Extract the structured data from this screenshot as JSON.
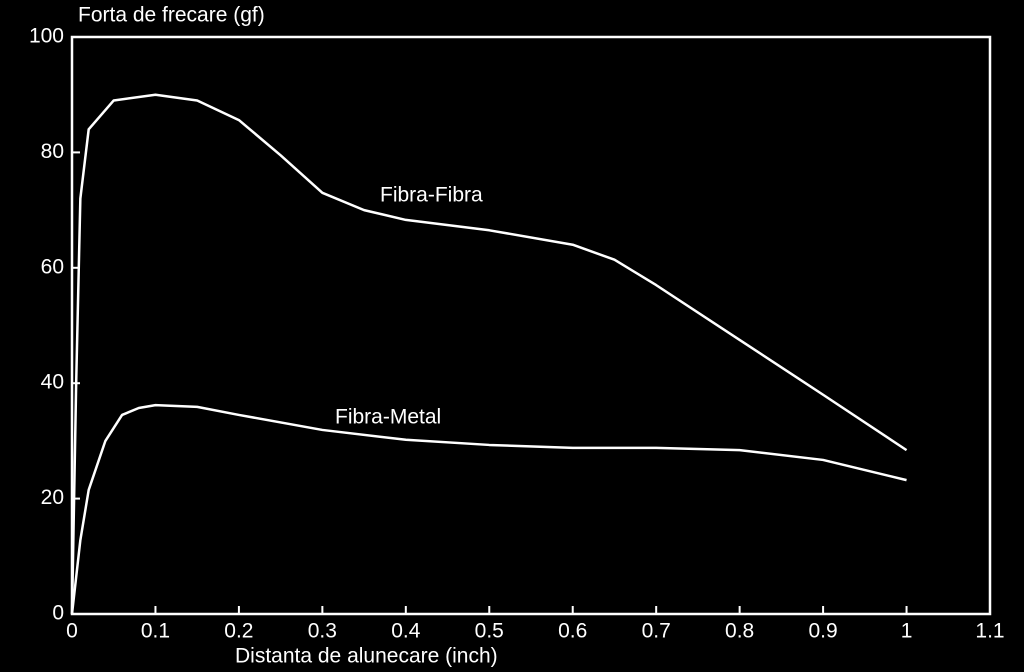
{
  "chart_data": {
    "type": "line",
    "title": "Forta de frecare (gf)",
    "x_label": "Distanta de alunecare (inch)",
    "xlim": [
      0,
      1.1
    ],
    "xticks": [
      0,
      0.1,
      0.2,
      0.3,
      0.4,
      0.5,
      0.6,
      0.7,
      0.8,
      0.9,
      1,
      1.1
    ],
    "ylim": [
      0,
      100
    ],
    "yticks": [
      0,
      20,
      40,
      60,
      80,
      100
    ],
    "grid": false,
    "series": [
      {
        "name": "Fibra-Fibra",
        "color": "#ffffff",
        "x": [
          0,
          0.005,
          0.01,
          0.02,
          0.05,
          0.1,
          0.15,
          0.2,
          0.25,
          0.3,
          0.35,
          0.4,
          0.5,
          0.6,
          0.65,
          0.7,
          0.8,
          0.9,
          1.0
        ],
        "values": [
          0,
          40,
          72,
          84,
          89,
          90,
          89,
          85.6,
          79.5,
          73,
          70,
          68.3,
          66.5,
          64,
          61.4,
          57,
          47.5,
          38,
          28.4
        ]
      },
      {
        "name": "Fibra-Metal",
        "color": "#ffffff",
        "x": [
          0,
          0.01,
          0.02,
          0.04,
          0.06,
          0.08,
          0.1,
          0.15,
          0.2,
          0.3,
          0.4,
          0.5,
          0.6,
          0.7,
          0.8,
          0.9,
          1.0
        ],
        "values": [
          0,
          12.8,
          21.5,
          30,
          34.5,
          35.7,
          36.2,
          35.9,
          34.5,
          31.9,
          30.2,
          29.3,
          28.8,
          28.8,
          28.4,
          26.7,
          23.2
        ]
      }
    ]
  }
}
